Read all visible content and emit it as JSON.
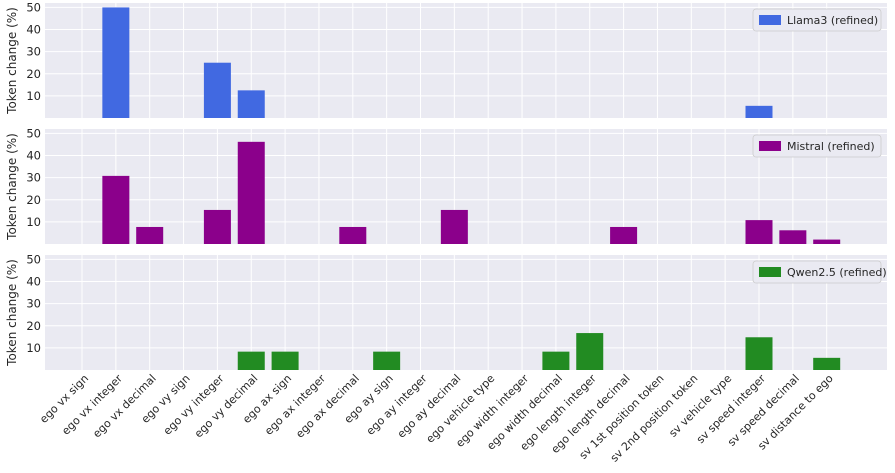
{
  "chart_data": {
    "type": "bar",
    "layout": "3 vertically stacked panels sharing x axis",
    "ylabel": "Token change (%)",
    "ylim": [
      0,
      52
    ],
    "yticks": [
      10,
      20,
      30,
      40,
      50
    ],
    "grid": true,
    "legend_position": "top-right",
    "categories": [
      "ego vx sign",
      "ego vx integer",
      "ego vx decimal",
      "ego vy sign",
      "ego vy integer",
      "ego vy decimal",
      "ego ax sign",
      "ego ax integer",
      "ego ax decimal",
      "ego ay sign",
      "ego ay integer",
      "ego ay decimal",
      "ego vehicle type",
      "ego width integer",
      "ego width decimal",
      "ego length integer",
      "ego length decimal",
      "sv 1st position token",
      "sv 2nd position token",
      "sv vehicle type",
      "sv speed integer",
      "sv speed decimal",
      "sv distance to ego"
    ],
    "series": [
      {
        "name": "Llama3 (refined)",
        "color": "#4169E1",
        "values": [
          0,
          50,
          0,
          0,
          25,
          12.5,
          0,
          0,
          0,
          0,
          0,
          0,
          0,
          0,
          0,
          0,
          0,
          0,
          0,
          0,
          5.5,
          0,
          0
        ]
      },
      {
        "name": "Mistral (refined)",
        "color": "#8B008B",
        "values": [
          0,
          30.8,
          7.7,
          0,
          15.4,
          46.2,
          0,
          0,
          7.7,
          0,
          0,
          15.4,
          0,
          0,
          0,
          0,
          7.7,
          0,
          0,
          0,
          10.8,
          6.2,
          2
        ]
      },
      {
        "name": "Qwen2.5 (refined)",
        "color": "#228B22",
        "values": [
          0,
          0,
          0,
          0,
          0,
          8.3,
          8.3,
          0,
          0,
          8.3,
          0,
          0,
          0,
          0,
          8.3,
          16.7,
          0,
          0,
          0,
          0,
          14.8,
          0,
          5.5
        ]
      }
    ]
  }
}
